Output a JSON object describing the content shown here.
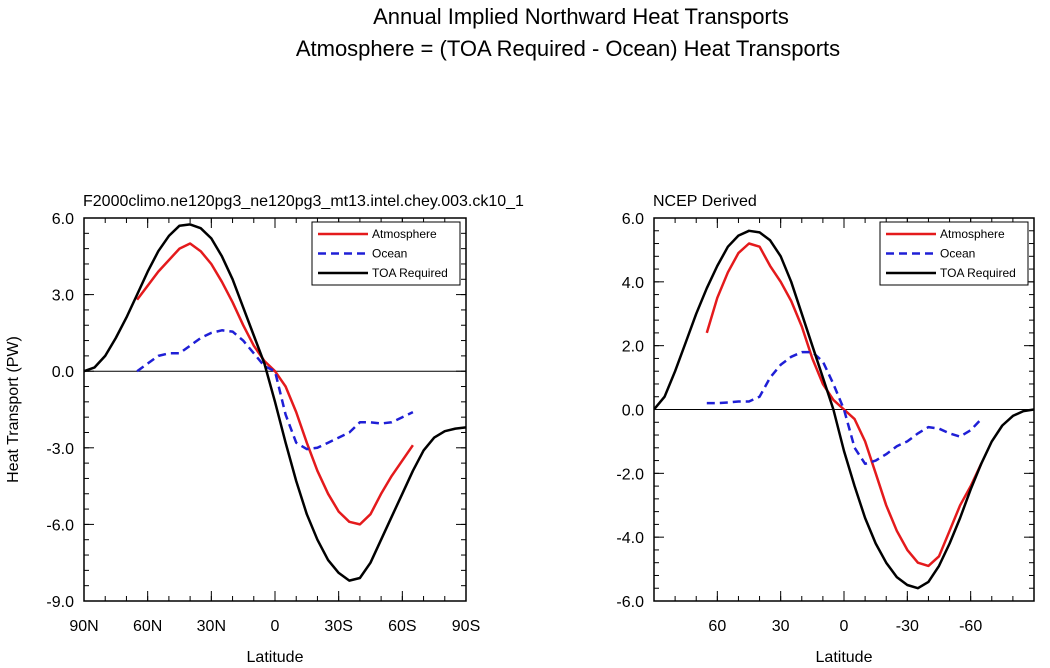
{
  "figure_title": {
    "line1": "Annual Implied Northward Heat Transports",
    "line2": "Atmosphere = (TOA Required - Ocean) Heat Transports"
  },
  "colors": {
    "atmosphere": "#e41a1c",
    "ocean": "#1f1fd6",
    "toa": "#000000"
  },
  "chart_data": [
    {
      "type": "line",
      "title": "F2000climo.ne120pg3_ne120pg3_mt13.intel.chey.003.ck10_1",
      "xlabel": "Latitude",
      "ylabel": "Heat Transport (PW)",
      "xlim": [
        90,
        -90
      ],
      "ylim": [
        -9,
        6
      ],
      "xticks": [
        90,
        60,
        30,
        0,
        -30,
        -60,
        -90
      ],
      "xtick_labels": [
        "90N",
        "60N",
        "30N",
        "0",
        "30S",
        "60S",
        "90S"
      ],
      "yticks": [
        6,
        3,
        0,
        -3,
        -6,
        -9
      ],
      "ytick_labels": [
        "6.0",
        "3.0",
        "0.0",
        "-3.0",
        "-6.0",
        "-9.0"
      ],
      "legend": [
        "Atmosphere",
        "Ocean",
        "TOA Required"
      ],
      "legend_position": "top-right",
      "series": [
        {
          "name": "Atmosphere",
          "style": "solid",
          "color_key": "atmosphere",
          "x": [
            65,
            55,
            45,
            40,
            35,
            30,
            25,
            20,
            15,
            10,
            5,
            0,
            -5,
            -10,
            -15,
            -20,
            -25,
            -30,
            -35,
            -40,
            -45,
            -50,
            -55,
            -60,
            -65
          ],
          "y": [
            2.8,
            3.9,
            4.8,
            5.0,
            4.7,
            4.2,
            3.5,
            2.7,
            1.8,
            1.0,
            0.4,
            0.0,
            -0.6,
            -1.6,
            -2.8,
            -3.9,
            -4.8,
            -5.5,
            -5.9,
            -6.0,
            -5.6,
            -4.8,
            -4.1,
            -3.5,
            -2.9
          ]
        },
        {
          "name": "Ocean",
          "style": "dashed",
          "color_key": "ocean",
          "x": [
            65,
            60,
            55,
            50,
            45,
            40,
            35,
            30,
            25,
            20,
            15,
            10,
            5,
            0,
            -5,
            -10,
            -15,
            -20,
            -25,
            -30,
            -35,
            -40,
            -45,
            -50,
            -55,
            -60,
            -65
          ],
          "y": [
            0.0,
            0.3,
            0.6,
            0.7,
            0.7,
            1.0,
            1.3,
            1.5,
            1.6,
            1.55,
            1.2,
            0.7,
            0.2,
            0.0,
            -1.7,
            -2.8,
            -3.05,
            -3.0,
            -2.8,
            -2.6,
            -2.4,
            -2.0,
            -2.0,
            -2.05,
            -2.0,
            -1.8,
            -1.6
          ]
        },
        {
          "name": "TOA Required",
          "style": "solid",
          "color_key": "toa",
          "x": [
            90,
            85,
            80,
            75,
            70,
            65,
            60,
            55,
            50,
            45,
            40,
            35,
            30,
            25,
            20,
            15,
            10,
            5,
            0,
            -5,
            -10,
            -15,
            -20,
            -25,
            -30,
            -35,
            -40,
            -45,
            -50,
            -55,
            -60,
            -65,
            -70,
            -75,
            -80,
            -85,
            -90
          ],
          "y": [
            0.0,
            0.15,
            0.6,
            1.3,
            2.1,
            3.0,
            3.9,
            4.7,
            5.3,
            5.7,
            5.75,
            5.6,
            5.2,
            4.5,
            3.6,
            2.5,
            1.4,
            0.3,
            -1.2,
            -2.8,
            -4.3,
            -5.6,
            -6.6,
            -7.4,
            -7.9,
            -8.2,
            -8.1,
            -7.5,
            -6.6,
            -5.7,
            -4.8,
            -3.9,
            -3.1,
            -2.6,
            -2.35,
            -2.25,
            -2.2
          ]
        }
      ]
    },
    {
      "type": "line",
      "title": "NCEP Derived",
      "xlabel": "Latitude",
      "ylabel": "",
      "xlim": [
        90,
        -90
      ],
      "ylim": [
        -6,
        6
      ],
      "xticks": [
        60,
        30,
        0,
        -30,
        -60
      ],
      "xtick_labels": [
        "60",
        "30",
        "0",
        "-30",
        "-60"
      ],
      "yticks": [
        6,
        4,
        2,
        0,
        -2,
        -4,
        -6
      ],
      "ytick_labels": [
        "6.0",
        "4.0",
        "2.0",
        "0.0",
        "-2.0",
        "-4.0",
        "-6.0"
      ],
      "legend": [
        "Atmosphere",
        "Ocean",
        "TOA Required"
      ],
      "legend_position": "top-right",
      "series": [
        {
          "name": "Atmosphere",
          "style": "solid",
          "color_key": "atmosphere",
          "x": [
            65,
            60,
            55,
            50,
            45,
            40,
            35,
            30,
            25,
            20,
            15,
            10,
            5,
            0,
            -5,
            -10,
            -15,
            -20,
            -25,
            -30,
            -35,
            -40,
            -45,
            -50,
            -55,
            -60,
            -65
          ],
          "y": [
            2.4,
            3.5,
            4.3,
            4.9,
            5.2,
            5.1,
            4.5,
            4.0,
            3.4,
            2.6,
            1.6,
            0.8,
            0.3,
            0.0,
            -0.3,
            -1.0,
            -2.0,
            -3.0,
            -3.8,
            -4.4,
            -4.8,
            -4.9,
            -4.6,
            -3.8,
            -3.0,
            -2.4,
            -1.7
          ]
        },
        {
          "name": "Ocean",
          "style": "dashed",
          "color_key": "ocean",
          "x": [
            65,
            60,
            55,
            50,
            45,
            40,
            35,
            30,
            25,
            20,
            15,
            10,
            5,
            0,
            -5,
            -10,
            -15,
            -20,
            -25,
            -30,
            -35,
            -40,
            -45,
            -50,
            -55,
            -60,
            -65
          ],
          "y": [
            0.2,
            0.2,
            0.22,
            0.25,
            0.25,
            0.4,
            1.0,
            1.4,
            1.65,
            1.8,
            1.8,
            1.5,
            0.8,
            0.0,
            -1.2,
            -1.7,
            -1.6,
            -1.4,
            -1.15,
            -1.0,
            -0.75,
            -0.55,
            -0.6,
            -0.75,
            -0.85,
            -0.65,
            -0.3
          ]
        },
        {
          "name": "TOA Required",
          "style": "solid",
          "color_key": "toa",
          "x": [
            90,
            85,
            80,
            75,
            70,
            65,
            60,
            55,
            50,
            45,
            40,
            35,
            30,
            25,
            20,
            15,
            10,
            5,
            0,
            -5,
            -10,
            -15,
            -20,
            -25,
            -30,
            -35,
            -40,
            -45,
            -50,
            -55,
            -60,
            -65,
            -70,
            -75,
            -80,
            -85,
            -90
          ],
          "y": [
            0.0,
            0.4,
            1.2,
            2.1,
            3.0,
            3.8,
            4.5,
            5.1,
            5.45,
            5.6,
            5.55,
            5.3,
            4.8,
            4.0,
            3.0,
            2.0,
            1.0,
            0.0,
            -1.3,
            -2.4,
            -3.4,
            -4.2,
            -4.8,
            -5.25,
            -5.5,
            -5.6,
            -5.4,
            -4.9,
            -4.2,
            -3.4,
            -2.5,
            -1.7,
            -1.0,
            -0.5,
            -0.2,
            -0.05,
            0.0
          ]
        }
      ]
    }
  ]
}
